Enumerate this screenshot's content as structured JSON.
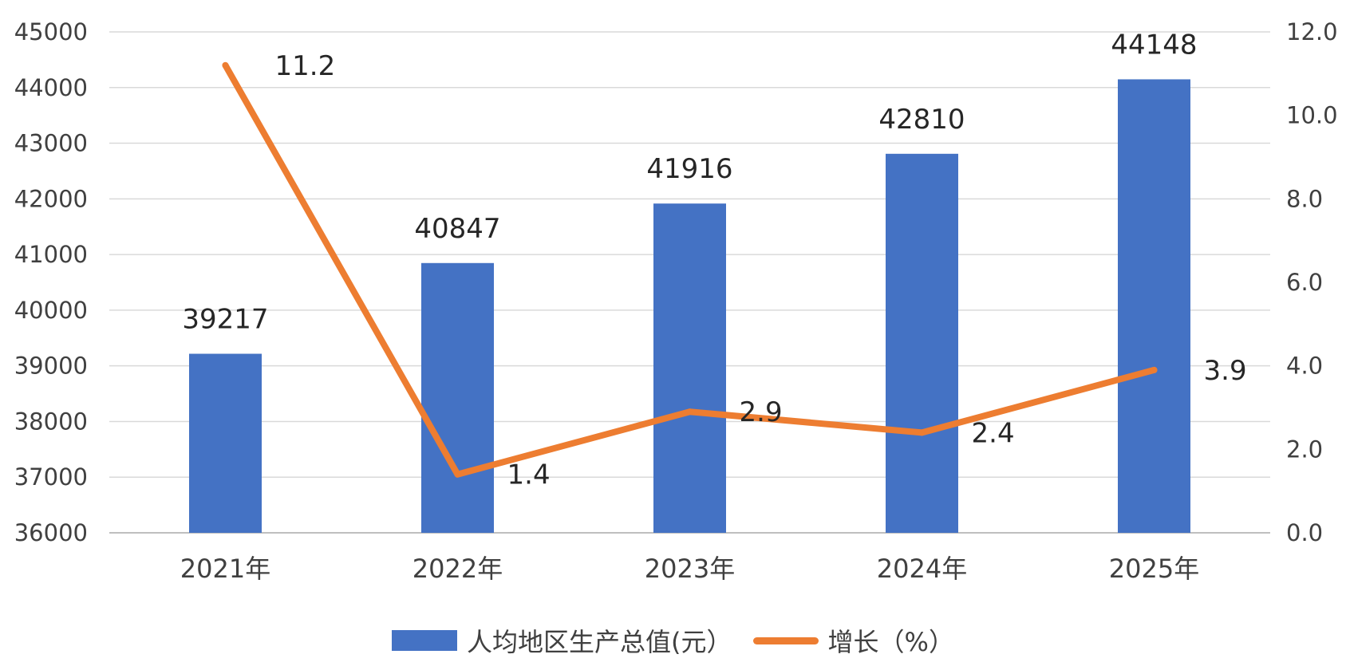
{
  "chart_data": {
    "type": "bar",
    "categories": [
      "2021年",
      "2022年",
      "2023年",
      "2024年",
      "2025年"
    ],
    "series": [
      {
        "name": "人均地区生产总值(元）",
        "type": "bar",
        "axis": "left",
        "values": [
          39217,
          40847,
          41916,
          42810,
          44148
        ],
        "color": "#4472C4"
      },
      {
        "name": "增长（%）",
        "type": "line",
        "axis": "right",
        "values": [
          11.2,
          1.4,
          2.9,
          2.4,
          3.9
        ],
        "value_labels": [
          "11.2",
          "1.4",
          "2.9",
          "2.4",
          "3.9"
        ],
        "color": "#ED7D31"
      }
    ],
    "left_axis": {
      "ylim": [
        36000,
        45000
      ],
      "ticks": [
        "36000",
        "37000",
        "38000",
        "39000",
        "40000",
        "41000",
        "42000",
        "43000",
        "44000",
        "45000"
      ]
    },
    "right_axis": {
      "ylim": [
        0,
        12
      ],
      "ticks": [
        "0.0",
        "2.0",
        "4.0",
        "6.0",
        "8.0",
        "10.0",
        "12.0"
      ]
    },
    "grid": true,
    "legend_position": "bottom"
  }
}
